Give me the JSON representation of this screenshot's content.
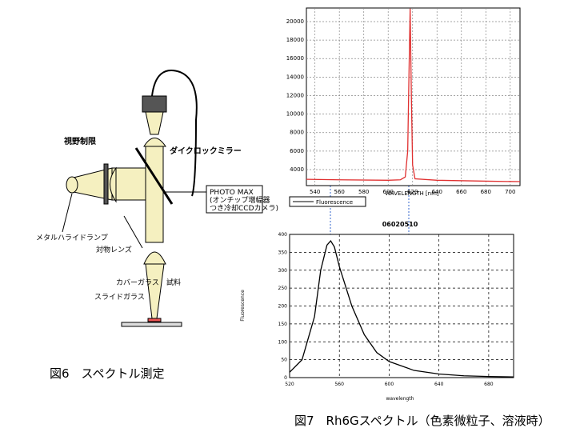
{
  "diagram": {
    "field_stop": "視野制限",
    "dichroic_mirror": "ダイクロックミラー",
    "camera": "PHOTO MAX",
    "camera_note_1": "(オンチップ増幅器",
    "camera_note_2": "つき冷却CCDカメラ)",
    "lamp": "メタルハライドランプ",
    "objective": "対物レンズ",
    "cover_glass": "カバーガラス",
    "sample": "試料",
    "slide_glass": "スライドガラス",
    "caption": "図6　スペクトル測定"
  },
  "chart_data": [
    {
      "type": "line",
      "x_label": "WAVELENGTH [nm]",
      "legend": "Fluorescence",
      "grid": true,
      "x": [
        533,
        560,
        600,
        610,
        614,
        616,
        617,
        618,
        619,
        620,
        622,
        640,
        680,
        708
      ],
      "series": [
        {
          "name": "Fluorescence",
          "color": "#e03030",
          "values": [
            2950,
            2900,
            2850,
            2900,
            3200,
            6000,
            14000,
            21400,
            12000,
            4500,
            3000,
            2850,
            2750,
            2700
          ]
        }
      ],
      "xlim": [
        533,
        708
      ],
      "xticks": [
        540,
        560,
        580,
        600,
        620,
        640,
        660,
        680,
        700
      ],
      "ylim": [
        2270,
        21470
      ],
      "yticks": [
        4000,
        6000,
        8000,
        10000,
        12000,
        14000,
        16000,
        18000,
        20000
      ]
    },
    {
      "type": "line",
      "title": "06020510",
      "x_label": "wavelength",
      "y_label": "Fluorescence",
      "grid": true,
      "x": [
        520,
        530,
        540,
        545,
        550,
        553,
        556,
        560,
        570,
        580,
        590,
        600,
        620,
        640,
        660,
        680,
        700
      ],
      "series": [
        {
          "name": "Fluorescence",
          "color": "#000000",
          "values": [
            15,
            50,
            170,
            300,
            370,
            382,
            365,
            310,
            200,
            120,
            70,
            45,
            20,
            10,
            5,
            3,
            2
          ]
        }
      ],
      "xlim": [
        520,
        700
      ],
      "xticks": [
        520,
        560,
        600,
        640,
        680
      ],
      "ylim": [
        0,
        400
      ],
      "yticks": [
        0,
        50,
        100,
        150,
        200,
        250,
        300,
        350,
        400
      ]
    }
  ],
  "caption": "図7　Rh6Gスペクトル（色素微粒子、溶液時）"
}
